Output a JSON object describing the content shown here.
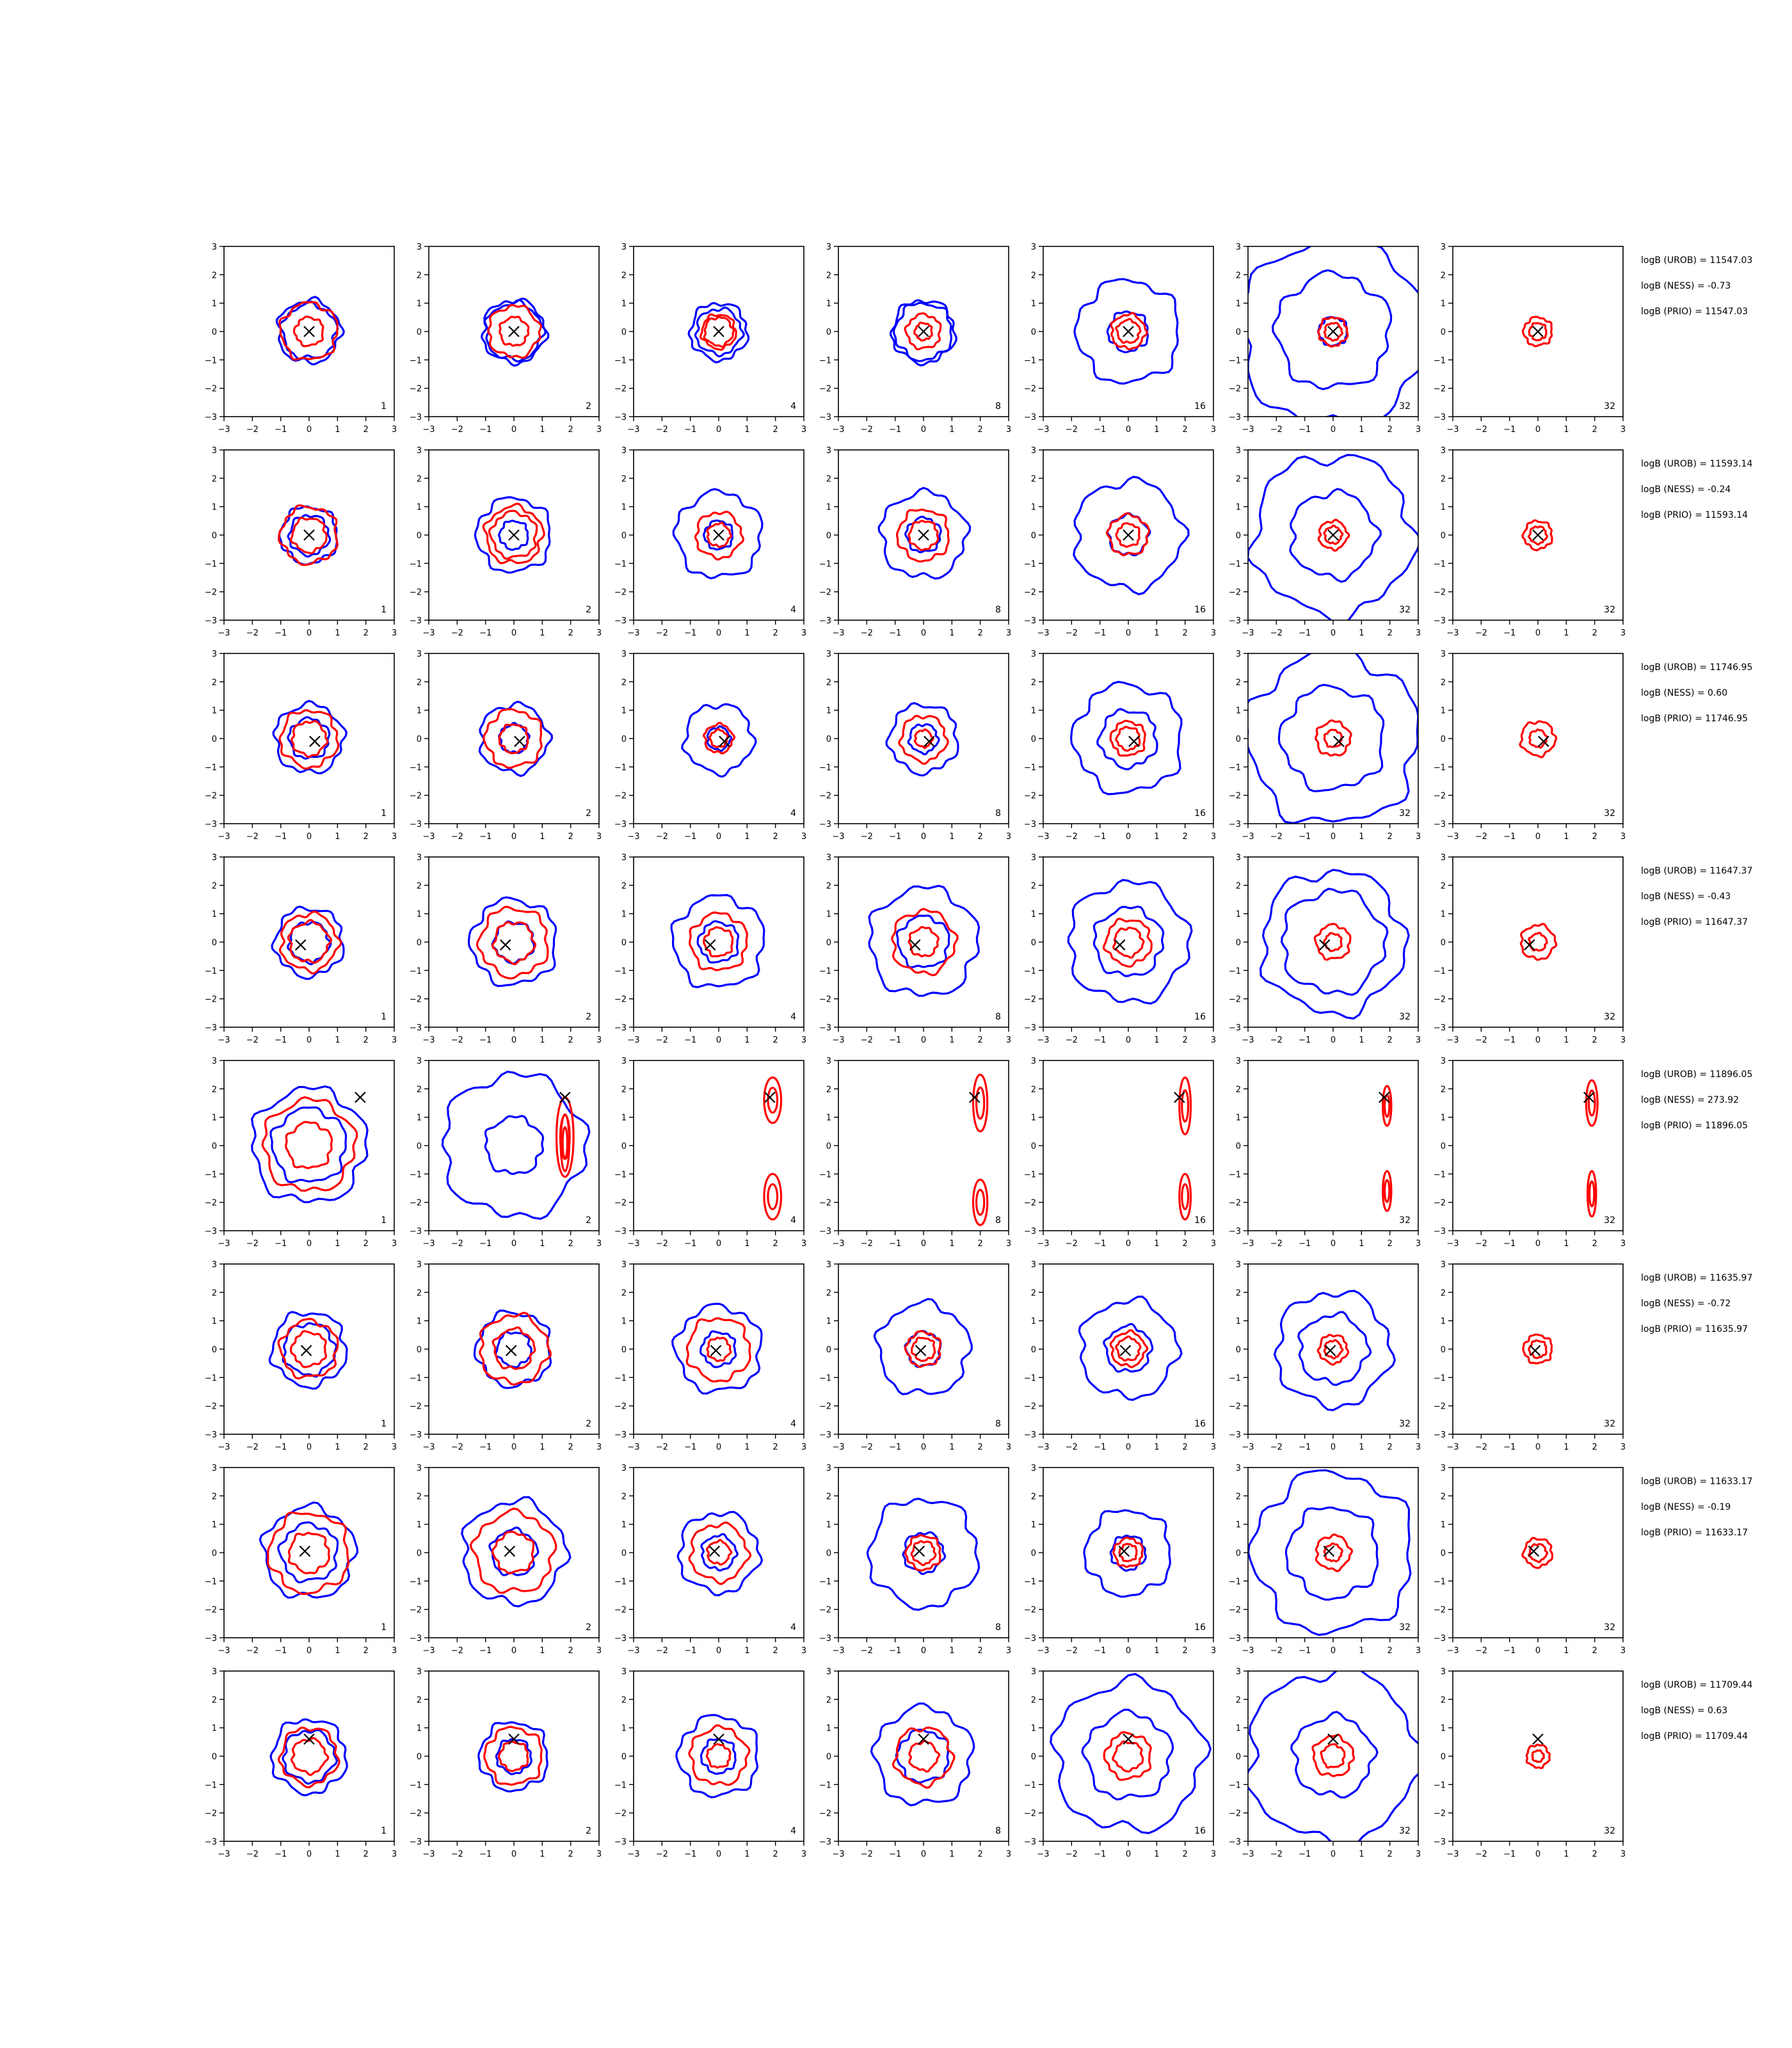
{
  "figure": {
    "columns": [
      {
        "corner_label": "1",
        "mode": "both"
      },
      {
        "corner_label": "2",
        "mode": "both"
      },
      {
        "corner_label": "4",
        "mode": "both"
      },
      {
        "corner_label": "8",
        "mode": "both"
      },
      {
        "corner_label": "16",
        "mode": "both"
      },
      {
        "corner_label": "32",
        "mode": "both"
      },
      {
        "corner_label": "32",
        "mode": "red-only"
      }
    ],
    "rows": [
      {
        "ann": [
          "logB (UROB) = 11547.03",
          "logB (NESS) = -0.73",
          "logB (PRIO) = 11547.03"
        ]
      },
      {
        "ann": [
          "logB (UROB) = 11593.14",
          "logB (NESS) = -0.24",
          "logB (PRIO) = 11593.14"
        ]
      },
      {
        "ann": [
          "logB (UROB) = 11746.95",
          "logB (NESS) = 0.60",
          "logB (PRIO) = 11746.95"
        ]
      },
      {
        "ann": [
          "logB (UROB) = 11647.37",
          "logB (NESS) = -0.43",
          "logB (PRIO) = 11647.37"
        ]
      },
      {
        "ann": [
          "logB (UROB) = 11896.05",
          "logB (NESS) = 273.92",
          "logB (PRIO) = 11896.05"
        ]
      },
      {
        "ann": [
          "logB (UROB) = 11635.97",
          "logB (NESS) = -0.72",
          "logB (PRIO) = 11635.97"
        ]
      },
      {
        "ann": [
          "logB (UROB) = 11633.17",
          "logB (NESS) = -0.19",
          "logB (PRIO) = 11633.17"
        ]
      },
      {
        "ann": [
          "logB (UROB) = 11709.44",
          "logB (NESS) = 0.63",
          "logB (PRIO) = 11709.44"
        ]
      }
    ]
  },
  "chart_data": {
    "type": "contour",
    "xlim": [
      -3,
      3
    ],
    "ylim": [
      -3,
      3
    ],
    "xticks": [
      -3,
      -2,
      -1,
      0,
      1,
      2,
      3
    ],
    "yticks": [
      -3,
      -2,
      -1,
      0,
      1,
      2,
      3
    ],
    "tick_labels": [
      "−3",
      "−2",
      "−1",
      "0",
      "1",
      "2",
      "3"
    ],
    "contour_colors": {
      "blue": "#0000ff",
      "red": "#ff0000"
    },
    "marker": "x",
    "true_points": [
      [
        0,
        0
      ],
      [
        0,
        0
      ],
      [
        0.2,
        -0.1
      ],
      [
        -0.3,
        -0.1
      ],
      [
        1.8,
        1.7
      ],
      [
        -0.1,
        -0.05
      ],
      [
        -0.15,
        0.05
      ],
      [
        0,
        0.6
      ]
    ],
    "blue_contour_radii": [
      [
        [
          0.95,
          1.1
        ],
        [
          1.0,
          1.1
        ],
        [
          0.8,
          1.0
        ],
        [
          1.1,
          1.0
        ],
        [
          0.7,
          1.8
        ],
        [
          0.5,
          2.0,
          3.3
        ],
        []
      ],
      [
        [
          0.7,
          1.0
        ],
        [
          0.5,
          1.3
        ],
        [
          0.5,
          1.5
        ],
        [
          0.6,
          1.5
        ],
        [
          0.7,
          1.9
        ],
        [
          1.5,
          2.8
        ],
        []
      ],
      [
        [
          0.7,
          1.2
        ],
        [
          0.5,
          1.2
        ],
        [
          0.4,
          1.2
        ],
        [
          0.5,
          1.2
        ],
        [
          1.0,
          1.9
        ],
        [
          1.8,
          3.0
        ],
        []
      ],
      [
        [
          0.7,
          1.2
        ],
        [
          0.7,
          1.5
        ],
        [
          0.7,
          1.6
        ],
        [
          0.9,
          1.9
        ],
        [
          1.2,
          2.1
        ],
        [
          1.8,
          2.5
        ],
        []
      ],
      [
        [
          1.3,
          2.0
        ],
        [
          1.0,
          2.5
        ],
        [],
        [],
        [],
        [],
        []
      ],
      [
        [
          0.9,
          1.3
        ],
        [
          0.6,
          1.3
        ],
        [
          0.6,
          1.5
        ],
        [
          0.6,
          1.6
        ],
        [
          0.8,
          1.7
        ],
        [
          1.2,
          2.0
        ],
        []
      ],
      [
        [
          1.0,
          1.6
        ],
        [
          0.8,
          1.8
        ],
        [
          0.6,
          1.4
        ],
        [
          0.7,
          1.9
        ],
        [
          0.6,
          1.5
        ],
        [
          1.6,
          2.8
        ],
        []
      ],
      [
        [
          0.9,
          1.3
        ],
        [
          0.6,
          1.2
        ],
        [
          0.6,
          1.4
        ],
        [
          0.9,
          1.7
        ],
        [
          1.5,
          2.6
        ],
        [
          1.4,
          3.0
        ],
        []
      ]
    ],
    "red_contour_radii": [
      [
        [
          0.5,
          1.0
        ],
        [
          0.5,
          0.9
        ],
        [
          0.5,
          0.6
        ],
        [
          0.3,
          0.6
        ],
        [
          0.4,
          0.6
        ],
        [
          0.3,
          0.5
        ],
        [
          0.3,
          0.5
        ]
      ],
      [
        [
          0.6,
          1.0
        ],
        [
          0.8,
          1.0
        ],
        [
          0.4,
          0.8
        ],
        [
          0.5,
          0.9
        ],
        [
          0.4,
          0.7
        ],
        [
          0.3,
          0.5
        ],
        [
          0.3,
          0.5
        ]
      ],
      [
        [
          0.6,
          1.0
        ],
        [
          0.5,
          1.0
        ],
        [
          0.3,
          0.5
        ],
        [
          0.3,
          0.8
        ],
        [
          0.4,
          0.6
        ],
        [
          0.3,
          0.6
        ],
        [
          0.3,
          0.6
        ]
      ],
      [
        [
          0.7,
          1.0
        ],
        [
          0.7,
          1.2
        ],
        [
          0.5,
          1.0
        ],
        [
          0.5,
          1.1
        ],
        [
          0.5,
          0.8
        ],
        [
          0.3,
          0.6
        ],
        [
          0.3,
          0.6
        ]
      ],
      [
        [
          0.8,
          1.6
        ],
        [],
        [],
        [],
        [],
        [],
        []
      ],
      [
        [
          0.6,
          1.0
        ],
        [
          0.7,
          1.2
        ],
        [
          0.4,
          1.1
        ],
        [
          0.4,
          0.6
        ],
        [
          0.4,
          0.6
        ],
        [
          0.3,
          0.5
        ],
        [
          0.3,
          0.5
        ]
      ],
      [
        [
          0.7,
          1.4
        ],
        [
          0.7,
          1.4
        ],
        [
          0.4,
          1.0
        ],
        [
          0.4,
          0.6
        ],
        [
          0.3,
          0.5
        ],
        [
          0.3,
          0.6
        ],
        [
          0.3,
          0.5
        ]
      ],
      [
        [
          0.6,
          1.0
        ],
        [
          0.5,
          1.0
        ],
        [
          0.4,
          1.0
        ],
        [
          0.5,
          1.0
        ],
        [
          0.5,
          0.8
        ],
        [
          0.4,
          0.7
        ],
        [
          0.2,
          0.4
        ]
      ]
    ],
    "row5_red_ellipses": [
      [],
      [
        [
          1.8,
          0.3,
          0.3,
          1.4
        ],
        [
          1.8,
          0.1,
          0.15,
          1.0
        ]
      ],
      [
        [
          1.9,
          1.6,
          0.3,
          0.8
        ],
        [
          1.9,
          -1.8,
          0.3,
          0.8
        ]
      ],
      [
        [
          2.0,
          1.5,
          0.25,
          1.0
        ],
        [
          2.0,
          -2.0,
          0.25,
          0.8
        ]
      ],
      [
        [
          2.0,
          1.4,
          0.2,
          1.0
        ],
        [
          2.0,
          -1.8,
          0.2,
          0.8
        ]
      ],
      [
        [
          1.9,
          1.4,
          0.15,
          0.7
        ],
        [
          1.9,
          -1.6,
          0.15,
          0.7
        ]
      ],
      [
        [
          1.9,
          1.5,
          0.2,
          0.8
        ],
        [
          1.9,
          -1.7,
          0.15,
          0.8
        ]
      ]
    ]
  }
}
